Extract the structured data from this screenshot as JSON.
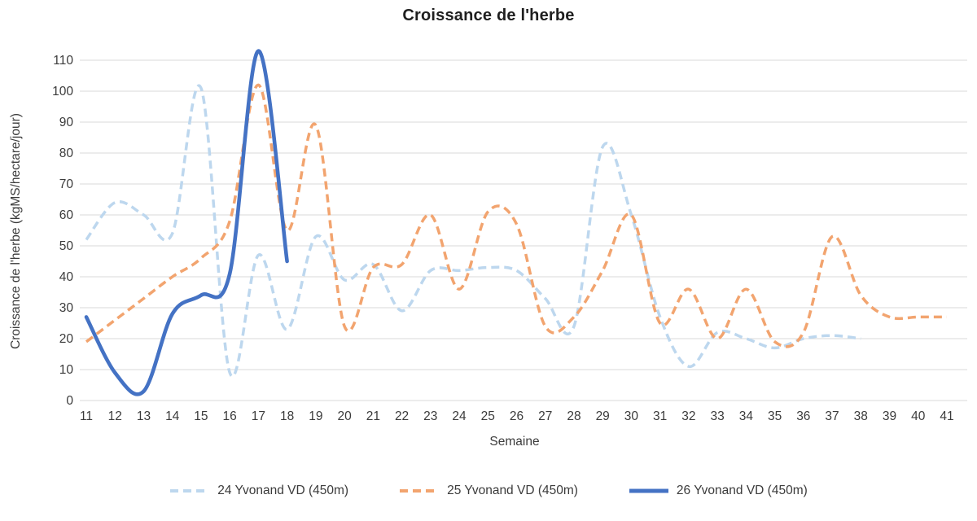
{
  "title": "Croissance de l'herbe",
  "chart_data": {
    "type": "line",
    "title": "Croissance de l'herbe",
    "xlabel": "Semaine",
    "ylabel": "Croissance de l'herbe (kgMS/hectare/jour)",
    "x": [
      11,
      12,
      13,
      14,
      15,
      16,
      17,
      18,
      19,
      20,
      21,
      22,
      23,
      24,
      25,
      26,
      27,
      28,
      29,
      30,
      31,
      32,
      33,
      34,
      35,
      36,
      37,
      38,
      39,
      40,
      41
    ],
    "y_ticks": [
      0,
      10,
      20,
      30,
      40,
      50,
      60,
      70,
      80,
      90,
      100,
      110
    ],
    "ylim": [
      0,
      110
    ],
    "grid": true,
    "gridline_color": "#d9d9d9",
    "tick_label_color": "#3b3b3b",
    "legend_position": "bottom",
    "line_style_note": "series 24 and 25 dashed, series 26 solid smooth lines",
    "series": [
      {
        "name": "24 Yvonand VD (450m)",
        "color": "#BDD7EE",
        "style": "dashed",
        "values": [
          52,
          64,
          60,
          54,
          101,
          9,
          47,
          23,
          53,
          39,
          44,
          29,
          42,
          42,
          43,
          42,
          33,
          24,
          82,
          60,
          27,
          11,
          22,
          20,
          17,
          20,
          21,
          20,
          null,
          null,
          null
        ]
      },
      {
        "name": "25 Yvonand VD (450m)",
        "color": "#F2A46F",
        "style": "dashed",
        "values": [
          19,
          26,
          33,
          40,
          46,
          58,
          102,
          55,
          89,
          24,
          43,
          44,
          60,
          36,
          61,
          57,
          24,
          27,
          42,
          60,
          25,
          36,
          20,
          36,
          19,
          22,
          53,
          34,
          27,
          27,
          27
        ]
      },
      {
        "name": "26 Yvonand VD (450m)",
        "color": "#4472C4",
        "style": "solid",
        "values": [
          27,
          9,
          3,
          28,
          34,
          41,
          113,
          45,
          null,
          null,
          null,
          null,
          null,
          null,
          null,
          null,
          null,
          null,
          null,
          null,
          null,
          null,
          null,
          null,
          null,
          null,
          null,
          null,
          null,
          null,
          null
        ]
      }
    ]
  }
}
